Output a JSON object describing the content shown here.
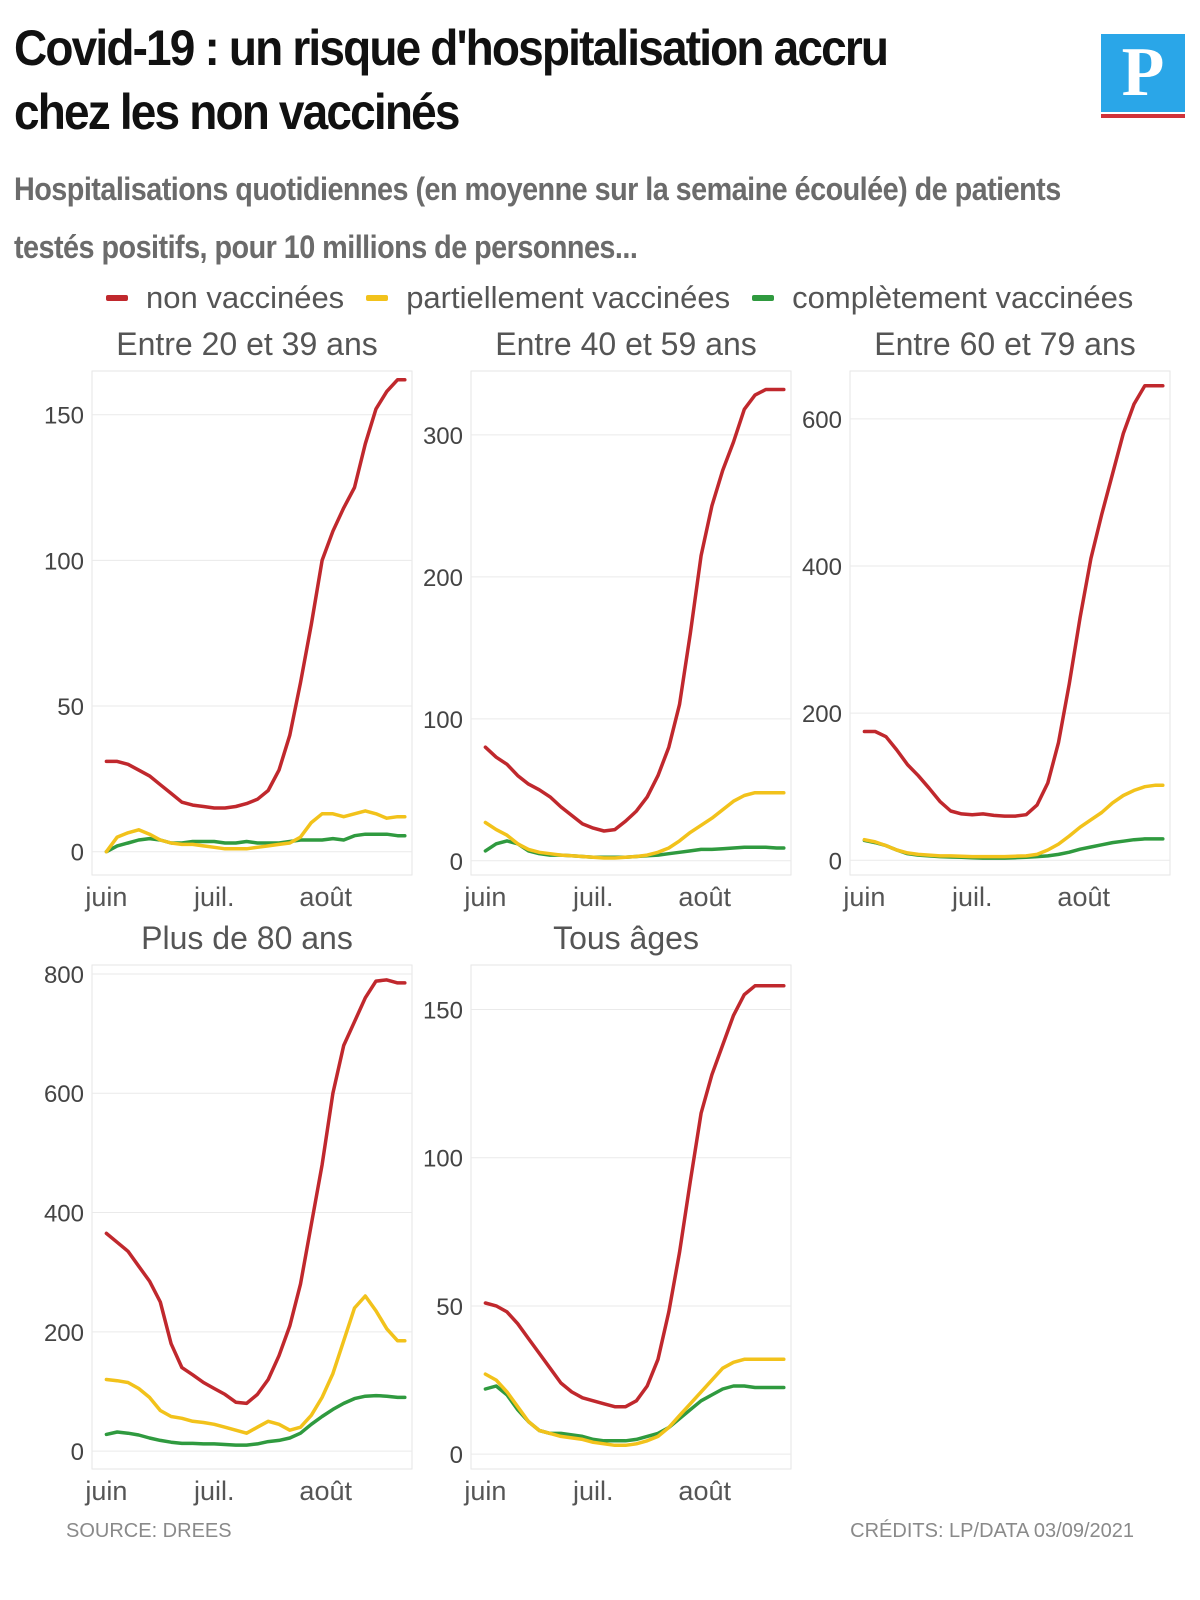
{
  "header": {
    "title": "Covid-19 : un risque d'hospitalisation accru chez les non vaccinés",
    "subtitle": "Hospitalisations quotidiennes (en moyenne sur la semaine écoulée) de patients testés positifs, pour 10 millions de personnes...",
    "logo_letter": "P"
  },
  "legend": [
    {
      "label": "non vaccinées",
      "color": "#c0282d"
    },
    {
      "label": "partiellement vaccinées",
      "color": "#f2c21b"
    },
    {
      "label": "complètement vaccinées",
      "color": "#2f9a3f"
    }
  ],
  "footer": {
    "source": "SOURCE: DREES",
    "credits": "CRÉDITS: LP/DATA 03/09/2021"
  },
  "chart_data": [
    {
      "type": "line",
      "title": "Entre 20 et 39 ans",
      "x_ticks": [
        "juin",
        "juil.",
        "août"
      ],
      "x_tick_days": [
        0,
        30,
        61
      ],
      "x_domain": [
        -4,
        85
      ],
      "ylim": [
        -8,
        165
      ],
      "y_ticks": [
        0,
        50,
        100,
        150
      ],
      "grid": true,
      "series": [
        {
          "name": "non vaccinées",
          "color": "#c0282d",
          "x": [
            0,
            3,
            6,
            9,
            12,
            15,
            18,
            21,
            24,
            27,
            30,
            33,
            36,
            39,
            42,
            45,
            48,
            51,
            54,
            57,
            60,
            63,
            66,
            69,
            72,
            75,
            78,
            81,
            83
          ],
          "y": [
            31,
            31,
            30,
            28,
            26,
            23,
            20,
            17,
            16,
            15.5,
            15,
            15,
            15.5,
            16.5,
            18,
            21,
            28,
            40,
            58,
            78,
            100,
            110,
            118,
            125,
            140,
            152,
            158,
            162,
            162
          ]
        },
        {
          "name": "partiellement vaccinées",
          "color": "#f2c21b",
          "x": [
            0,
            3,
            6,
            9,
            12,
            15,
            18,
            21,
            24,
            27,
            30,
            33,
            36,
            39,
            42,
            45,
            48,
            51,
            54,
            57,
            60,
            63,
            66,
            69,
            72,
            75,
            78,
            81,
            83
          ],
          "y": [
            0,
            5,
            6.5,
            7.5,
            6,
            4,
            3,
            2.5,
            2.5,
            2,
            1.5,
            1,
            1,
            1,
            1.5,
            2,
            2.5,
            3,
            5,
            10,
            13,
            13,
            12,
            13,
            14,
            13,
            11.5,
            12,
            12
          ]
        },
        {
          "name": "complètement vaccinées",
          "color": "#2f9a3f",
          "x": [
            0,
            3,
            6,
            9,
            12,
            15,
            18,
            21,
            24,
            27,
            30,
            33,
            36,
            39,
            42,
            45,
            48,
            51,
            54,
            57,
            60,
            63,
            66,
            69,
            72,
            75,
            78,
            81,
            83
          ],
          "y": [
            0,
            2,
            3,
            4,
            4.5,
            4,
            3,
            3,
            3.5,
            3.5,
            3.5,
            3,
            3,
            3.5,
            3,
            3,
            3,
            3.5,
            4,
            4,
            4,
            4.5,
            4,
            5.5,
            6,
            6,
            6,
            5.5,
            5.5
          ]
        }
      ]
    },
    {
      "type": "line",
      "title": "Entre 40 et 59 ans",
      "x_ticks": [
        "juin",
        "juil.",
        "août"
      ],
      "x_tick_days": [
        0,
        30,
        61
      ],
      "x_domain": [
        -4,
        85
      ],
      "ylim": [
        -10,
        345
      ],
      "y_ticks": [
        0,
        100,
        200,
        300
      ],
      "grid": true,
      "series": [
        {
          "name": "non vaccinées",
          "color": "#c0282d",
          "x": [
            0,
            3,
            6,
            9,
            12,
            15,
            18,
            21,
            24,
            27,
            30,
            33,
            36,
            39,
            42,
            45,
            48,
            51,
            54,
            57,
            60,
            63,
            66,
            69,
            72,
            75,
            78,
            81,
            83
          ],
          "y": [
            80,
            73,
            68,
            60,
            54,
            50,
            45,
            38,
            32,
            26,
            23,
            21,
            22,
            28,
            35,
            45,
            60,
            80,
            110,
            160,
            215,
            250,
            275,
            295,
            318,
            328,
            332,
            332,
            332
          ]
        },
        {
          "name": "partiellement vaccinées",
          "color": "#f2c21b",
          "x": [
            0,
            3,
            6,
            9,
            12,
            15,
            18,
            21,
            24,
            27,
            30,
            33,
            36,
            39,
            42,
            45,
            48,
            51,
            54,
            57,
            60,
            63,
            66,
            69,
            72,
            75,
            78,
            81,
            83
          ],
          "y": [
            27,
            22,
            18,
            12,
            8,
            6,
            5,
            4,
            3.5,
            3,
            2.5,
            2,
            2,
            2.5,
            3,
            4,
            6,
            9,
            14,
            20,
            25,
            30,
            36,
            42,
            46,
            48,
            48,
            48,
            48
          ]
        },
        {
          "name": "complètement vaccinées",
          "color": "#2f9a3f",
          "x": [
            0,
            3,
            6,
            9,
            12,
            15,
            18,
            21,
            24,
            27,
            30,
            33,
            36,
            39,
            42,
            45,
            48,
            51,
            54,
            57,
            60,
            63,
            66,
            69,
            72,
            75,
            78,
            81,
            83
          ],
          "y": [
            7,
            12,
            14,
            12,
            7,
            5,
            4,
            4,
            3.5,
            3,
            2.5,
            2.5,
            2.5,
            2.5,
            3,
            3.5,
            4,
            5,
            6,
            7,
            8,
            8,
            8.5,
            9,
            9.5,
            9.5,
            9.5,
            9,
            9
          ]
        }
      ]
    },
    {
      "type": "line",
      "title": "Entre 60 et 79 ans",
      "x_ticks": [
        "juin",
        "juil.",
        "août"
      ],
      "x_tick_days": [
        0,
        30,
        61
      ],
      "x_domain": [
        -4,
        85
      ],
      "ylim": [
        -20,
        665
      ],
      "y_ticks": [
        0,
        200,
        400,
        600
      ],
      "grid": true,
      "series": [
        {
          "name": "non vaccinées",
          "color": "#c0282d",
          "x": [
            0,
            3,
            6,
            9,
            12,
            15,
            18,
            21,
            24,
            27,
            30,
            33,
            36,
            39,
            42,
            45,
            48,
            51,
            54,
            57,
            60,
            63,
            66,
            69,
            72,
            75,
            78,
            81,
            83
          ],
          "y": [
            175,
            175,
            168,
            150,
            130,
            115,
            98,
            80,
            67,
            63,
            62,
            63,
            61,
            60,
            60,
            62,
            75,
            105,
            160,
            240,
            330,
            410,
            470,
            525,
            580,
            620,
            645,
            645,
            645
          ]
        },
        {
          "name": "partiellement vaccinées",
          "color": "#f2c21b",
          "x": [
            0,
            3,
            6,
            9,
            12,
            15,
            18,
            21,
            24,
            27,
            30,
            33,
            36,
            39,
            42,
            45,
            48,
            51,
            54,
            57,
            60,
            63,
            66,
            69,
            72,
            75,
            78,
            81,
            83
          ],
          "y": [
            28,
            25,
            20,
            14,
            10,
            8,
            7,
            6,
            6,
            5.5,
            5,
            5,
            5,
            5,
            5.5,
            6,
            8,
            14,
            22,
            33,
            45,
            55,
            65,
            78,
            88,
            95,
            100,
            102,
            102
          ]
        },
        {
          "name": "complètement vaccinées",
          "color": "#2f9a3f",
          "x": [
            0,
            3,
            6,
            9,
            12,
            15,
            18,
            21,
            24,
            27,
            30,
            33,
            36,
            39,
            42,
            45,
            48,
            51,
            54,
            57,
            60,
            63,
            66,
            69,
            72,
            75,
            78,
            81,
            83
          ],
          "y": [
            27,
            24,
            20,
            14,
            9,
            7,
            6,
            5,
            4.5,
            4,
            3.5,
            3,
            3,
            3,
            3.5,
            4,
            5,
            6,
            8,
            11,
            15,
            18,
            21,
            24,
            26,
            28,
            29,
            29,
            29
          ]
        }
      ]
    },
    {
      "type": "line",
      "title": "Plus de 80 ans",
      "x_ticks": [
        "juin",
        "juil.",
        "août"
      ],
      "x_tick_days": [
        0,
        30,
        61
      ],
      "x_domain": [
        -4,
        85
      ],
      "ylim": [
        -30,
        815
      ],
      "y_ticks": [
        0,
        200,
        400,
        600,
        800
      ],
      "grid": true,
      "series": [
        {
          "name": "non vaccinées",
          "color": "#c0282d",
          "x": [
            0,
            3,
            6,
            9,
            12,
            15,
            18,
            21,
            24,
            27,
            30,
            33,
            36,
            39,
            42,
            45,
            48,
            51,
            54,
            57,
            60,
            63,
            66,
            69,
            72,
            75,
            78,
            81,
            83
          ],
          "y": [
            365,
            350,
            335,
            310,
            285,
            250,
            180,
            140,
            128,
            115,
            105,
            95,
            82,
            80,
            95,
            120,
            160,
            210,
            280,
            380,
            480,
            600,
            680,
            720,
            760,
            788,
            790,
            785,
            785
          ]
        },
        {
          "name": "partiellement vaccinées",
          "color": "#f2c21b",
          "x": [
            0,
            3,
            6,
            9,
            12,
            15,
            18,
            21,
            24,
            27,
            30,
            33,
            36,
            39,
            42,
            45,
            48,
            51,
            54,
            57,
            60,
            63,
            66,
            69,
            72,
            75,
            78,
            81,
            83
          ],
          "y": [
            120,
            118,
            115,
            105,
            90,
            68,
            58,
            55,
            50,
            48,
            45,
            40,
            35,
            30,
            40,
            50,
            45,
            35,
            40,
            60,
            90,
            130,
            185,
            240,
            260,
            235,
            205,
            185,
            185
          ]
        },
        {
          "name": "complètement vaccinées",
          "color": "#2f9a3f",
          "x": [
            0,
            3,
            6,
            9,
            12,
            15,
            18,
            21,
            24,
            27,
            30,
            33,
            36,
            39,
            42,
            45,
            48,
            51,
            54,
            57,
            60,
            63,
            66,
            69,
            72,
            75,
            78,
            81,
            83
          ],
          "y": [
            28,
            32,
            30,
            27,
            22,
            18,
            15,
            13,
            13,
            12,
            12,
            11,
            10,
            10,
            12,
            16,
            18,
            22,
            30,
            45,
            58,
            70,
            80,
            88,
            92,
            93,
            92,
            90,
            90
          ]
        }
      ]
    },
    {
      "type": "line",
      "title": "Tous âges",
      "x_ticks": [
        "juin",
        "juil.",
        "août"
      ],
      "x_tick_days": [
        0,
        30,
        61
      ],
      "x_domain": [
        -4,
        85
      ],
      "ylim": [
        -5,
        165
      ],
      "y_ticks": [
        0,
        50,
        100,
        150
      ],
      "grid": true,
      "series": [
        {
          "name": "non vaccinées",
          "color": "#c0282d",
          "x": [
            0,
            3,
            6,
            9,
            12,
            15,
            18,
            21,
            24,
            27,
            30,
            33,
            36,
            39,
            42,
            45,
            48,
            51,
            54,
            57,
            60,
            63,
            66,
            69,
            72,
            75,
            78,
            81,
            83
          ],
          "y": [
            51,
            50,
            48,
            44,
            39,
            34,
            29,
            24,
            21,
            19,
            18,
            17,
            16,
            16,
            18,
            23,
            32,
            48,
            68,
            92,
            115,
            128,
            138,
            148,
            155,
            158,
            158,
            158,
            158
          ]
        },
        {
          "name": "partiellement vaccinées",
          "color": "#f2c21b",
          "x": [
            0,
            3,
            6,
            9,
            12,
            15,
            18,
            21,
            24,
            27,
            30,
            33,
            36,
            39,
            42,
            45,
            48,
            51,
            54,
            57,
            60,
            63,
            66,
            69,
            72,
            75,
            78,
            81,
            83
          ],
          "y": [
            27,
            25,
            21,
            16,
            11,
            8,
            7,
            6,
            5.5,
            5,
            4,
            3.5,
            3,
            3,
            3.5,
            4.5,
            6,
            9,
            13,
            17,
            21,
            25,
            29,
            31,
            32,
            32,
            32,
            32,
            32
          ]
        },
        {
          "name": "complètement vaccinées",
          "color": "#2f9a3f",
          "x": [
            0,
            3,
            6,
            9,
            12,
            15,
            18,
            21,
            24,
            27,
            30,
            33,
            36,
            39,
            42,
            45,
            48,
            51,
            54,
            57,
            60,
            63,
            66,
            69,
            72,
            75,
            78,
            81,
            83
          ],
          "y": [
            22,
            23,
            20,
            15,
            11,
            8,
            7,
            7,
            6.5,
            6,
            5,
            4.5,
            4.5,
            4.5,
            5,
            6,
            7,
            9,
            12,
            15,
            18,
            20,
            22,
            23,
            23,
            22.5,
            22.5,
            22.5,
            22.5
          ]
        }
      ]
    }
  ]
}
